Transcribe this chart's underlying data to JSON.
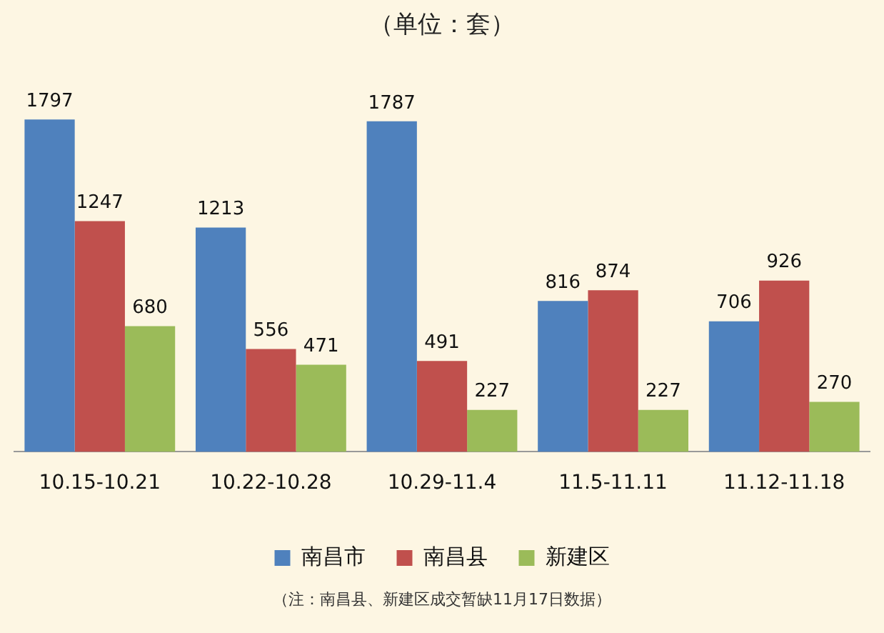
{
  "chart_data": {
    "type": "bar",
    "title": "（单位：套）",
    "categories": [
      "10.15-10.21",
      "10.22-10.28",
      "10.29-11.4",
      "11.5-11.11",
      "11.12-11.18"
    ],
    "series": [
      {
        "name": "南昌市",
        "color": "#4f81bd",
        "values": [
          1797,
          1213,
          1787,
          816,
          706
        ]
      },
      {
        "name": "南昌县",
        "color": "#c0504d",
        "values": [
          1247,
          556,
          491,
          874,
          926
        ]
      },
      {
        "name": "新建区",
        "color": "#9bbb59",
        "values": [
          680,
          471,
          227,
          227,
          270
        ]
      }
    ],
    "data_labels": true,
    "grid": false,
    "legend": "bottom",
    "tick_labels": "x",
    "annotations": [
      "（注：南昌县、新建区成交暂缺11月17日数据）"
    ]
  }
}
